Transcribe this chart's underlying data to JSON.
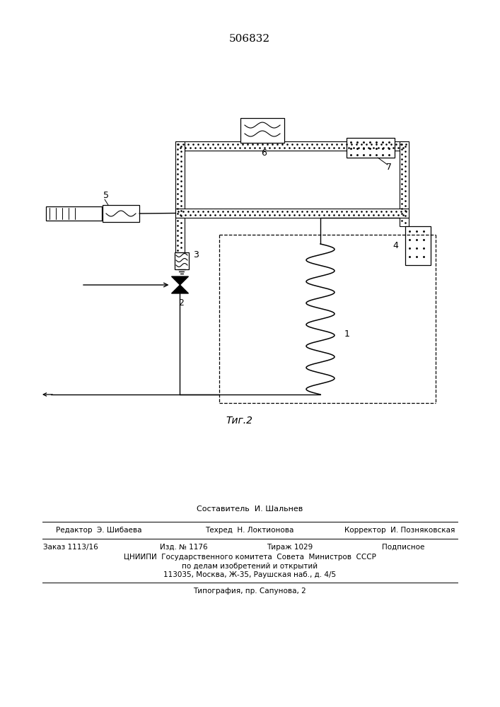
{
  "title": "506832",
  "title_fontsize": 11,
  "fig_caption": "Τиг.2",
  "bg_color": "#ffffff",
  "line_color": "#000000",
  "footer_lines": [
    "Составитель  И. Шальнев",
    "Редактор  Э. Шибаева",
    "Техред  Н. Локтионова",
    "Корректор  И. Позняковская",
    "Заказ 1113/16",
    "Изд. № 1176",
    "Тираж 1029",
    "Подписное",
    "ЦНИИПИ  Государственного комитета  Совета  Министров  СССР",
    "по делам изобретений и открытий",
    "113035, Москва, Ж-35, Раушская наб., д. 4/5",
    "Типография, пр. Сапунова, 2"
  ]
}
